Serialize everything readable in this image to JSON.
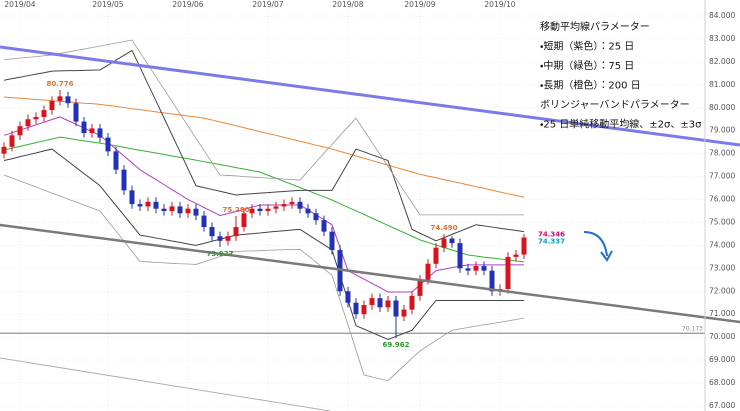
{
  "chart_data": {
    "type": "candlestick",
    "categories": [
      null,
      null,
      "2019/04",
      null,
      null,
      null,
      null,
      null,
      null,
      null,
      null,
      null,
      null,
      "2019/05",
      null,
      null,
      null,
      null,
      null,
      null,
      null,
      null,
      null,
      "2019/06",
      null,
      null,
      null,
      null,
      null,
      null,
      null,
      null,
      null,
      "2019/07",
      null,
      null,
      null,
      null,
      null,
      null,
      null,
      null,
      null,
      "2019/08",
      null,
      null,
      null,
      null,
      null,
      null,
      null,
      null,
      "2019/09",
      null,
      null,
      null,
      null,
      null,
      null,
      null,
      null,
      null,
      "2019/10",
      null,
      null,
      null
    ],
    "open": [
      78.0,
      78.3,
      78.8,
      79.2,
      79.5,
      79.6,
      79.9,
      80.3,
      80.5,
      80.2,
      79.4,
      78.9,
      79.1,
      78.7,
      78.1,
      77.3,
      76.4,
      75.8,
      75.7,
      75.9,
      75.6,
      75.5,
      75.7,
      75.4,
      75.6,
      75.3,
      74.8,
      74.4,
      74.2,
      74.4,
      74.8,
      75.4,
      75.6,
      75.5,
      75.6,
      75.7,
      75.8,
      75.9,
      75.6,
      75.4,
      75.1,
      74.6,
      73.8,
      72.0,
      71.5,
      71.0,
      71.4,
      71.7,
      71.3,
      71.6,
      70.9,
      71.2,
      71.8,
      72.5,
      73.2,
      73.9,
      74.3,
      74.1,
      73.0,
      72.9,
      73.1,
      72.9,
      72.0,
      72.1,
      73.5,
      73.6
    ],
    "high": [
      78.5,
      79.0,
      79.4,
      79.7,
      79.8,
      80.1,
      80.5,
      80.776,
      80.7,
      80.4,
      79.6,
      79.3,
      79.3,
      78.9,
      78.3,
      77.5,
      76.6,
      76.0,
      76.1,
      76.1,
      75.8,
      75.9,
      75.9,
      75.8,
      75.8,
      75.5,
      75.0,
      74.6,
      74.6,
      75.28,
      75.6,
      75.8,
      75.8,
      75.8,
      75.9,
      76.0,
      76.1,
      76.1,
      75.8,
      75.6,
      75.3,
      74.8,
      74.0,
      72.2,
      71.7,
      71.6,
      71.9,
      71.9,
      71.8,
      71.8,
      71.4,
      72.0,
      72.7,
      73.4,
      74.1,
      74.49,
      74.4,
      74.3,
      73.2,
      73.3,
      73.3,
      73.1,
      72.3,
      73.7,
      73.8,
      74.5
    ],
    "low": [
      77.8,
      78.1,
      78.6,
      79.0,
      79.3,
      79.4,
      79.7,
      80.1,
      80.0,
      79.2,
      78.7,
      78.7,
      78.5,
      77.9,
      77.1,
      76.2,
      75.6,
      75.5,
      75.5,
      75.4,
      75.3,
      75.3,
      75.2,
      75.2,
      75.1,
      74.6,
      74.2,
      73.927,
      74.0,
      74.2,
      74.6,
      75.2,
      75.3,
      75.3,
      75.4,
      75.5,
      75.6,
      75.4,
      75.2,
      74.9,
      74.4,
      73.6,
      71.8,
      71.3,
      70.8,
      70.8,
      71.2,
      71.1,
      71.1,
      69.962,
      70.7,
      71.0,
      71.6,
      72.3,
      73.0,
      73.7,
      73.9,
      72.8,
      72.7,
      72.7,
      72.7,
      71.8,
      71.8,
      71.9,
      73.3,
      73.4
    ],
    "close": [
      78.3,
      78.8,
      79.2,
      79.5,
      79.6,
      79.9,
      80.3,
      80.5,
      80.2,
      79.4,
      78.9,
      79.1,
      78.7,
      78.1,
      77.3,
      76.4,
      75.8,
      75.7,
      75.9,
      75.6,
      75.5,
      75.7,
      75.4,
      75.6,
      75.3,
      74.8,
      74.4,
      74.2,
      74.4,
      74.8,
      75.4,
      75.6,
      75.5,
      75.6,
      75.7,
      75.8,
      75.9,
      75.6,
      75.4,
      75.1,
      74.6,
      73.8,
      72.0,
      71.5,
      71.0,
      71.4,
      71.7,
      71.3,
      71.6,
      70.9,
      71.2,
      71.8,
      72.5,
      73.2,
      73.9,
      74.3,
      74.1,
      73.0,
      72.9,
      73.1,
      72.9,
      72.0,
      72.1,
      73.5,
      73.6,
      74.346
    ],
    "up_color": "#d7141e",
    "down_color": "#2232b4",
    "series": [
      {
        "color": "#e8873a",
        "width": 1,
        "values": [
          80.47,
          80.44,
          80.42,
          80.39,
          80.36,
          80.34,
          80.31,
          80.28,
          80.26,
          80.23,
          80.2,
          80.18,
          80.15,
          80.1,
          80.06,
          80.01,
          79.96,
          79.92,
          79.87,
          79.82,
          79.78,
          79.73,
          79.69,
          79.64,
          79.6,
          79.55,
          79.47,
          79.38,
          79.3,
          79.22,
          79.13,
          79.05,
          78.96,
          78.88,
          78.8,
          78.71,
          78.63,
          78.54,
          78.46,
          78.37,
          78.29,
          78.2,
          78.1,
          78.0,
          77.9,
          77.8,
          77.7,
          77.6,
          77.5,
          77.4,
          77.3,
          77.2,
          77.1,
          77.02,
          76.95,
          76.87,
          76.79,
          76.72,
          76.64,
          76.56,
          76.49,
          76.41,
          76.33,
          76.25,
          76.18,
          76.1
        ]
      },
      {
        "color": "#35b035",
        "width": 1,
        "values": [
          78.16,
          78.24,
          78.32,
          78.4,
          78.48,
          78.56,
          78.64,
          78.72,
          78.67,
          78.61,
          78.56,
          78.51,
          78.46,
          78.4,
          78.34,
          78.28,
          78.21,
          78.15,
          78.09,
          78.03,
          77.97,
          77.9,
          77.84,
          77.78,
          77.72,
          77.65,
          77.59,
          77.52,
          77.46,
          77.39,
          77.33,
          77.26,
          77.2,
          77.06,
          76.93,
          76.79,
          76.66,
          76.52,
          76.39,
          76.25,
          76.12,
          75.98,
          75.82,
          75.66,
          75.51,
          75.35,
          75.19,
          75.03,
          74.87,
          74.71,
          74.56,
          74.4,
          74.24,
          74.13,
          74.02,
          73.91,
          73.8,
          73.69,
          73.58,
          73.54,
          73.49,
          73.45,
          73.41,
          73.37,
          73.32,
          73.28
        ]
      },
      {
        "color": "#b43cc8",
        "width": 1,
        "values": [
          78.8,
          78.91,
          79.03,
          79.14,
          79.26,
          79.37,
          79.49,
          79.6,
          79.44,
          79.28,
          79.12,
          78.96,
          78.8,
          78.5,
          78.2,
          77.9,
          77.6,
          77.3,
          77.08,
          76.87,
          76.65,
          76.43,
          76.22,
          76.0,
          75.83,
          75.65,
          75.48,
          75.3,
          75.39,
          75.48,
          75.58,
          75.67,
          75.76,
          75.76,
          75.76,
          75.76,
          75.76,
          75.76,
          75.55,
          75.33,
          75.12,
          74.9,
          73.9,
          72.9,
          72.71,
          72.53,
          72.34,
          72.16,
          71.97,
          71.97,
          71.97,
          71.97,
          72.28,
          72.59,
          72.9,
          72.96,
          73.03,
          73.09,
          73.15,
          73.15,
          73.15,
          73.15,
          73.15,
          73.15,
          73.15,
          73.15
        ]
      },
      {
        "color": "#444444",
        "width": 1,
        "values": [
          81.2,
          81.27,
          81.33,
          81.4,
          81.47,
          81.53,
          81.6,
          81.61,
          81.62,
          81.62,
          81.63,
          81.64,
          81.65,
          81.86,
          82.08,
          82.29,
          82.5,
          81.77,
          81.03,
          80.3,
          79.56,
          78.82,
          78.08,
          77.34,
          76.6,
          76.52,
          76.44,
          76.36,
          76.28,
          76.2,
          76.23,
          76.25,
          76.28,
          76.3,
          76.33,
          76.35,
          76.38,
          76.4,
          76.4,
          76.4,
          76.4,
          76.4,
          77.0,
          77.6,
          78.2,
          78.08,
          77.95,
          77.83,
          77.7,
          76.7,
          75.7,
          74.7,
          74.53,
          74.37,
          74.2,
          74.34,
          74.48,
          74.62,
          74.76,
          74.9,
          74.85,
          74.8,
          74.75,
          74.7,
          74.65,
          74.6
        ]
      },
      {
        "color": "#444444",
        "width": 1,
        "values": [
          77.7,
          77.78,
          77.87,
          77.95,
          78.03,
          78.12,
          78.2,
          77.93,
          77.67,
          77.4,
          77.13,
          76.87,
          76.6,
          76.17,
          75.74,
          75.31,
          74.88,
          74.45,
          74.39,
          74.32,
          74.26,
          74.19,
          74.13,
          74.06,
          74.0,
          74.09,
          74.18,
          74.27,
          74.36,
          74.45,
          74.48,
          74.51,
          74.54,
          74.58,
          74.61,
          74.64,
          74.67,
          74.7,
          74.48,
          74.25,
          74.03,
          73.8,
          72.7,
          71.6,
          70.5,
          70.35,
          70.2,
          70.05,
          69.9,
          70.03,
          70.17,
          70.3,
          70.73,
          71.17,
          71.6,
          71.6,
          71.6,
          71.6,
          71.6,
          71.6,
          71.6,
          71.6,
          71.6,
          71.6,
          71.6,
          71.6
        ]
      },
      {
        "color": "#9a9a9a",
        "width": 0.8,
        "values": [
          82.1,
          82.13,
          82.17,
          82.2,
          82.23,
          82.27,
          82.3,
          82.37,
          82.43,
          82.5,
          82.56,
          82.63,
          82.69,
          82.76,
          82.82,
          82.89,
          82.95,
          82.42,
          81.88,
          81.35,
          80.81,
          80.28,
          79.74,
          79.21,
          78.67,
          78.14,
          77.6,
          77.07,
          77.05,
          77.03,
          77.0,
          76.98,
          76.96,
          76.94,
          76.92,
          76.89,
          76.87,
          76.85,
          77.24,
          77.63,
          78.02,
          78.4,
          78.79,
          79.17,
          79.55,
          79.02,
          78.49,
          77.97,
          77.44,
          76.91,
          76.38,
          75.86,
          75.33,
          75.33,
          75.33,
          75.33,
          75.33,
          75.33,
          75.33,
          75.33,
          75.33,
          75.33,
          75.33,
          75.33,
          75.33,
          75.33
        ]
      },
      {
        "color": "#9a9a9a",
        "width": 0.8,
        "values": [
          77.07,
          76.94,
          76.81,
          76.68,
          76.55,
          76.41,
          76.28,
          76.15,
          76.02,
          75.89,
          75.76,
          75.63,
          75.5,
          75.06,
          74.62,
          74.18,
          73.74,
          73.3,
          73.28,
          73.26,
          73.24,
          73.22,
          73.2,
          73.19,
          73.17,
          73.28,
          73.4,
          73.51,
          73.63,
          73.74,
          73.75,
          73.76,
          73.77,
          73.79,
          73.8,
          73.81,
          73.82,
          73.83,
          73.55,
          73.27,
          72.98,
          72.7,
          71.61,
          70.53,
          69.44,
          68.35,
          68.27,
          68.18,
          68.1,
          68.43,
          68.75,
          69.08,
          69.4,
          69.63,
          69.85,
          70.08,
          70.3,
          70.36,
          70.42,
          70.48,
          70.54,
          70.59,
          70.65,
          70.71,
          70.77,
          70.83
        ]
      }
    ],
    "annotations": [
      {
        "value": 80.776,
        "at": "high",
        "color": "#e8731f"
      },
      {
        "value": 75.28,
        "label": "75.280",
        "at": "high",
        "color": "#e8731f"
      },
      {
        "value": 73.927,
        "at": "low",
        "color": "#2a9a2a"
      },
      {
        "value": 69.962,
        "at": "low",
        "color": "#2a9a2a"
      },
      {
        "value": 74.49,
        "label": "74.490",
        "at": "high",
        "color": "#e8731f"
      }
    ],
    "price_labels": [
      {
        "value": 74.346,
        "color": "#e0007a"
      },
      {
        "value": 74.337,
        "color": "#00a0c8"
      }
    ],
    "hline": 70.173,
    "notes": [
      "移動平均線パラメーター",
      "・短期（紫色）：25 日",
      "・中期（緑色）：75 日",
      "・長期（橙色）：200 日",
      "ボリンジャーバンドパラメーター",
      "・25 日単純移動平均線、±2σ、±3σ"
    ],
    "ylim": [
      66.78,
      84.7
    ],
    "yticks": [
      {
        "value": 67,
        "label": "67.000"
      },
      {
        "value": 68,
        "label": "68.000"
      },
      {
        "value": 69,
        "label": "69.000"
      },
      {
        "value": 70,
        "label": "70.000"
      },
      {
        "value": 71,
        "label": "71.000"
      },
      {
        "value": 72,
        "label": "72.000"
      },
      {
        "value": 73,
        "label": "73.000"
      },
      {
        "value": 74,
        "label": "74.000"
      },
      {
        "value": 75,
        "label": "75.000"
      },
      {
        "value": 76,
        "label": "76.000"
      },
      {
        "value": 77,
        "label": "77.000"
      },
      {
        "value": 78,
        "label": "78.000"
      },
      {
        "value": 79,
        "label": "79.000"
      },
      {
        "value": 80,
        "label": "80.000"
      },
      {
        "value": 81,
        "label": "81.000"
      },
      {
        "value": 82,
        "label": "82.000"
      },
      {
        "value": 83,
        "label": "83.000"
      },
      {
        "value": 84,
        "label": "84.000"
      }
    ],
    "grid": true
  }
}
